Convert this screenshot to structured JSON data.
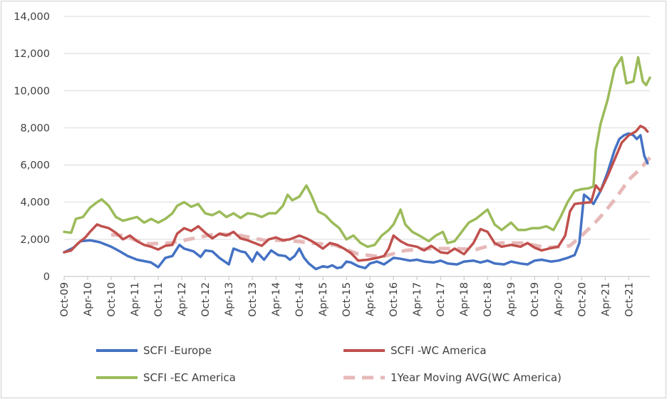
{
  "chart_data": {
    "type": "line",
    "title": "",
    "xlabel": "",
    "ylabel": "",
    "ylim": [
      0,
      14000
    ],
    "y_ticks": [
      "0",
      "2,000",
      "4,000",
      "6,000",
      "8,000",
      "10,000",
      "12,000",
      "14,000"
    ],
    "y_tick_values": [
      0,
      2000,
      4000,
      6000,
      8000,
      10000,
      12000,
      14000
    ],
    "x_tick_labels": [
      "Oct-09",
      "Apr-10",
      "Oct-10",
      "Apr-11",
      "Oct-11",
      "Apr-12",
      "Oct-12",
      "Apr-13",
      "Oct-13",
      "Apr-14",
      "Oct-14",
      "Apr-15",
      "Oct-15",
      "Apr-16",
      "Oct-16",
      "Apr-17",
      "Oct-17",
      "Apr-18",
      "Oct-18",
      "Apr-19",
      "Oct-19",
      "Apr-20",
      "Oct-20",
      "Apr-21",
      "Oct-21"
    ],
    "x_tick_values": [
      2009.75,
      2010.25,
      2010.75,
      2011.25,
      2011.75,
      2012.25,
      2012.75,
      2013.25,
      2013.75,
      2014.25,
      2014.75,
      2015.25,
      2015.75,
      2016.25,
      2016.75,
      2017.25,
      2017.75,
      2018.25,
      2018.75,
      2019.25,
      2019.75,
      2020.25,
      2020.75,
      2021.25,
      2021.75
    ],
    "xlim": [
      2009.75,
      2022.2
    ],
    "grid": "horizontal",
    "legend_position": "bottom",
    "series": [
      {
        "name": "SCFI -Europe",
        "color": "#4472c4",
        "style": "solid",
        "points": [
          [
            2009.75,
            1300
          ],
          [
            2009.95,
            1550
          ],
          [
            2010.1,
            1900
          ],
          [
            2010.3,
            1950
          ],
          [
            2010.5,
            1850
          ],
          [
            2010.75,
            1600
          ],
          [
            2010.9,
            1400
          ],
          [
            2011.1,
            1100
          ],
          [
            2011.3,
            900
          ],
          [
            2011.6,
            750
          ],
          [
            2011.75,
            500
          ],
          [
            2011.9,
            1000
          ],
          [
            2012.05,
            1100
          ],
          [
            2012.2,
            1700
          ],
          [
            2012.3,
            1500
          ],
          [
            2012.5,
            1350
          ],
          [
            2012.65,
            1050
          ],
          [
            2012.75,
            1400
          ],
          [
            2012.9,
            1350
          ],
          [
            2013.05,
            1000
          ],
          [
            2013.25,
            650
          ],
          [
            2013.35,
            1500
          ],
          [
            2013.5,
            1350
          ],
          [
            2013.6,
            1300
          ],
          [
            2013.75,
            800
          ],
          [
            2013.85,
            1300
          ],
          [
            2014.0,
            900
          ],
          [
            2014.15,
            1400
          ],
          [
            2014.3,
            1150
          ],
          [
            2014.45,
            1100
          ],
          [
            2014.55,
            900
          ],
          [
            2014.65,
            1100
          ],
          [
            2014.75,
            1500
          ],
          [
            2014.85,
            1000
          ],
          [
            2014.95,
            700
          ],
          [
            2015.1,
            400
          ],
          [
            2015.25,
            550
          ],
          [
            2015.35,
            500
          ],
          [
            2015.45,
            600
          ],
          [
            2015.55,
            450
          ],
          [
            2015.65,
            500
          ],
          [
            2015.75,
            800
          ],
          [
            2015.85,
            750
          ],
          [
            2016.0,
            550
          ],
          [
            2016.15,
            450
          ],
          [
            2016.25,
            700
          ],
          [
            2016.4,
            800
          ],
          [
            2016.55,
            650
          ],
          [
            2016.75,
            1000
          ],
          [
            2016.9,
            950
          ],
          [
            2017.1,
            850
          ],
          [
            2017.25,
            900
          ],
          [
            2017.4,
            800
          ],
          [
            2017.6,
            750
          ],
          [
            2017.75,
            850
          ],
          [
            2017.9,
            700
          ],
          [
            2018.1,
            650
          ],
          [
            2018.25,
            800
          ],
          [
            2018.45,
            850
          ],
          [
            2018.6,
            750
          ],
          [
            2018.75,
            850
          ],
          [
            2018.9,
            700
          ],
          [
            2019.1,
            650
          ],
          [
            2019.25,
            800
          ],
          [
            2019.45,
            700
          ],
          [
            2019.6,
            650
          ],
          [
            2019.75,
            850
          ],
          [
            2019.9,
            900
          ],
          [
            2020.1,
            800
          ],
          [
            2020.25,
            850
          ],
          [
            2020.45,
            1000
          ],
          [
            2020.6,
            1150
          ],
          [
            2020.7,
            1800
          ],
          [
            2020.8,
            4400
          ],
          [
            2020.9,
            4200
          ],
          [
            2021.0,
            3900
          ],
          [
            2021.15,
            4600
          ],
          [
            2021.3,
            5600
          ],
          [
            2021.45,
            6800
          ],
          [
            2021.55,
            7400
          ],
          [
            2021.65,
            7600
          ],
          [
            2021.75,
            7700
          ],
          [
            2021.85,
            7600
          ],
          [
            2021.92,
            7400
          ],
          [
            2022.0,
            7600
          ],
          [
            2022.08,
            6500
          ],
          [
            2022.15,
            6100
          ]
        ]
      },
      {
        "name": "SCFI -WC America",
        "color": "#c0504d",
        "style": "solid",
        "points": [
          [
            2009.75,
            1300
          ],
          [
            2009.9,
            1400
          ],
          [
            2010.05,
            1800
          ],
          [
            2010.2,
            2100
          ],
          [
            2010.3,
            2400
          ],
          [
            2010.45,
            2800
          ],
          [
            2010.55,
            2700
          ],
          [
            2010.7,
            2600
          ],
          [
            2010.85,
            2350
          ],
          [
            2011.0,
            2000
          ],
          [
            2011.15,
            2200
          ],
          [
            2011.3,
            1900
          ],
          [
            2011.45,
            1700
          ],
          [
            2011.6,
            1600
          ],
          [
            2011.75,
            1450
          ],
          [
            2011.9,
            1650
          ],
          [
            2012.05,
            1700
          ],
          [
            2012.15,
            2300
          ],
          [
            2012.3,
            2600
          ],
          [
            2012.45,
            2450
          ],
          [
            2012.6,
            2700
          ],
          [
            2012.75,
            2350
          ],
          [
            2012.9,
            2050
          ],
          [
            2013.05,
            2300
          ],
          [
            2013.2,
            2200
          ],
          [
            2013.35,
            2400
          ],
          [
            2013.5,
            2050
          ],
          [
            2013.65,
            1950
          ],
          [
            2013.8,
            1800
          ],
          [
            2013.95,
            1650
          ],
          [
            2014.1,
            2000
          ],
          [
            2014.25,
            2100
          ],
          [
            2014.4,
            1950
          ],
          [
            2014.55,
            2000
          ],
          [
            2014.75,
            2200
          ],
          [
            2014.9,
            2050
          ],
          [
            2015.05,
            1850
          ],
          [
            2015.25,
            1500
          ],
          [
            2015.4,
            1800
          ],
          [
            2015.55,
            1700
          ],
          [
            2015.7,
            1500
          ],
          [
            2015.85,
            1250
          ],
          [
            2016.0,
            850
          ],
          [
            2016.2,
            900
          ],
          [
            2016.4,
            1000
          ],
          [
            2016.55,
            1100
          ],
          [
            2016.65,
            1500
          ],
          [
            2016.75,
            2200
          ],
          [
            2016.9,
            1900
          ],
          [
            2017.05,
            1700
          ],
          [
            2017.25,
            1600
          ],
          [
            2017.4,
            1400
          ],
          [
            2017.55,
            1650
          ],
          [
            2017.75,
            1300
          ],
          [
            2017.9,
            1250
          ],
          [
            2018.05,
            1500
          ],
          [
            2018.25,
            1200
          ],
          [
            2018.45,
            1800
          ],
          [
            2018.6,
            2550
          ],
          [
            2018.75,
            2400
          ],
          [
            2018.9,
            1800
          ],
          [
            2019.05,
            1600
          ],
          [
            2019.25,
            1700
          ],
          [
            2019.45,
            1600
          ],
          [
            2019.6,
            1800
          ],
          [
            2019.75,
            1550
          ],
          [
            2019.9,
            1400
          ],
          [
            2020.05,
            1500
          ],
          [
            2020.25,
            1600
          ],
          [
            2020.4,
            2200
          ],
          [
            2020.5,
            3500
          ],
          [
            2020.6,
            3900
          ],
          [
            2020.75,
            3950
          ],
          [
            2020.95,
            4000
          ],
          [
            2021.05,
            4900
          ],
          [
            2021.15,
            4600
          ],
          [
            2021.3,
            5400
          ],
          [
            2021.45,
            6300
          ],
          [
            2021.6,
            7200
          ],
          [
            2021.75,
            7600
          ],
          [
            2021.9,
            7800
          ],
          [
            2022.0,
            8100
          ],
          [
            2022.08,
            8000
          ],
          [
            2022.15,
            7800
          ]
        ]
      },
      {
        "name": "SCFI -EC America",
        "color": "#9bbb59",
        "style": "solid",
        "points": [
          [
            2009.75,
            2400
          ],
          [
            2009.9,
            2350
          ],
          [
            2010.0,
            3100
          ],
          [
            2010.15,
            3200
          ],
          [
            2010.3,
            3700
          ],
          [
            2010.45,
            4000
          ],
          [
            2010.55,
            4150
          ],
          [
            2010.7,
            3800
          ],
          [
            2010.85,
            3200
          ],
          [
            2011.0,
            3000
          ],
          [
            2011.15,
            3100
          ],
          [
            2011.3,
            3200
          ],
          [
            2011.45,
            2900
          ],
          [
            2011.6,
            3100
          ],
          [
            2011.75,
            2900
          ],
          [
            2011.9,
            3100
          ],
          [
            2012.05,
            3400
          ],
          [
            2012.15,
            3800
          ],
          [
            2012.3,
            4000
          ],
          [
            2012.45,
            3750
          ],
          [
            2012.6,
            3900
          ],
          [
            2012.75,
            3400
          ],
          [
            2012.9,
            3300
          ],
          [
            2013.05,
            3500
          ],
          [
            2013.2,
            3200
          ],
          [
            2013.35,
            3400
          ],
          [
            2013.5,
            3150
          ],
          [
            2013.65,
            3400
          ],
          [
            2013.8,
            3350
          ],
          [
            2013.95,
            3200
          ],
          [
            2014.1,
            3400
          ],
          [
            2014.25,
            3400
          ],
          [
            2014.4,
            3800
          ],
          [
            2014.5,
            4400
          ],
          [
            2014.6,
            4100
          ],
          [
            2014.75,
            4300
          ],
          [
            2014.9,
            4900
          ],
          [
            2015.0,
            4400
          ],
          [
            2015.15,
            3500
          ],
          [
            2015.3,
            3300
          ],
          [
            2015.45,
            2900
          ],
          [
            2015.6,
            2600
          ],
          [
            2015.75,
            2000
          ],
          [
            2015.9,
            2200
          ],
          [
            2016.05,
            1800
          ],
          [
            2016.2,
            1600
          ],
          [
            2016.35,
            1700
          ],
          [
            2016.5,
            2200
          ],
          [
            2016.65,
            2500
          ],
          [
            2016.75,
            2800
          ],
          [
            2016.9,
            3600
          ],
          [
            2017.0,
            2800
          ],
          [
            2017.15,
            2400
          ],
          [
            2017.3,
            2200
          ],
          [
            2017.5,
            1900
          ],
          [
            2017.65,
            2200
          ],
          [
            2017.8,
            2400
          ],
          [
            2017.9,
            1800
          ],
          [
            2018.05,
            1900
          ],
          [
            2018.2,
            2400
          ],
          [
            2018.35,
            2900
          ],
          [
            2018.5,
            3100
          ],
          [
            2018.6,
            3300
          ],
          [
            2018.75,
            3600
          ],
          [
            2018.9,
            2800
          ],
          [
            2019.05,
            2500
          ],
          [
            2019.25,
            2900
          ],
          [
            2019.4,
            2500
          ],
          [
            2019.55,
            2500
          ],
          [
            2019.7,
            2600
          ],
          [
            2019.85,
            2600
          ],
          [
            2020.0,
            2700
          ],
          [
            2020.15,
            2500
          ],
          [
            2020.3,
            3200
          ],
          [
            2020.45,
            4000
          ],
          [
            2020.6,
            4600
          ],
          [
            2020.75,
            4700
          ],
          [
            2020.9,
            4750
          ],
          [
            2021.0,
            4850
          ],
          [
            2021.05,
            6800
          ],
          [
            2021.15,
            8200
          ],
          [
            2021.3,
            9500
          ],
          [
            2021.45,
            11200
          ],
          [
            2021.6,
            11800
          ],
          [
            2021.7,
            10400
          ],
          [
            2021.85,
            10500
          ],
          [
            2021.95,
            11800
          ],
          [
            2022.05,
            10500
          ],
          [
            2022.12,
            10300
          ],
          [
            2022.2,
            10700
          ]
        ]
      },
      {
        "name": "1Year Moving AVG(WC America)",
        "color": "#e6b9b8",
        "style": "dashed",
        "points": [
          [
            2010.75,
            2250
          ],
          [
            2011.0,
            2200
          ],
          [
            2011.5,
            1750
          ],
          [
            2012.0,
            1800
          ],
          [
            2012.5,
            2050
          ],
          [
            2013.0,
            2300
          ],
          [
            2013.5,
            2200
          ],
          [
            2014.0,
            1950
          ],
          [
            2014.5,
            1950
          ],
          [
            2015.0,
            1800
          ],
          [
            2015.5,
            1700
          ],
          [
            2016.0,
            1200
          ],
          [
            2016.5,
            1050
          ],
          [
            2017.0,
            1400
          ],
          [
            2017.5,
            1500
          ],
          [
            2018.0,
            1500
          ],
          [
            2018.5,
            1450
          ],
          [
            2019.0,
            1800
          ],
          [
            2019.5,
            1800
          ],
          [
            2020.0,
            1550
          ],
          [
            2020.5,
            1650
          ],
          [
            2020.75,
            2200
          ],
          [
            2021.0,
            2800
          ],
          [
            2021.25,
            3500
          ],
          [
            2021.5,
            4300
          ],
          [
            2021.75,
            5200
          ],
          [
            2022.0,
            5800
          ],
          [
            2022.2,
            6400
          ]
        ]
      }
    ]
  }
}
